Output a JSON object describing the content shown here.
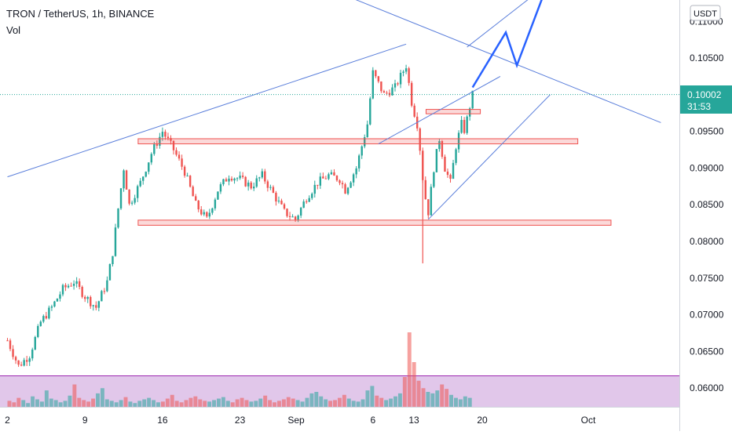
{
  "header": {
    "title": "TRON / TetherUS, 1h, BINANCE",
    "volume_label": "Vol"
  },
  "price_axis": {
    "currency": "USDT",
    "ticks": [
      "0.11000",
      "0.10500",
      "0.10000",
      "0.09500",
      "0.09000",
      "0.08500",
      "0.08000",
      "0.07500",
      "0.07000",
      "0.06500",
      "0.06000"
    ],
    "current_price": "0.10002",
    "countdown": "31:53",
    "current_price_color": "#26a69a"
  },
  "time_axis": {
    "ticks": [
      "2",
      "9",
      "16",
      "23",
      "Sep",
      "6",
      "13",
      "20",
      "Oct"
    ]
  },
  "chart_data": {
    "type": "candlestick",
    "symbol": "TRON / TetherUS",
    "interval": "1h",
    "exchange": "BINANCE",
    "ylim": [
      0.0585,
      0.1155
    ],
    "x_range_days": [
      1,
      38
    ],
    "last_price": 0.10002,
    "price_path": [
      [
        1.0,
        0.0665
      ],
      [
        2.0,
        0.063
      ],
      [
        3.0,
        0.0645
      ],
      [
        4.0,
        0.069
      ],
      [
        5.0,
        0.071
      ],
      [
        6.0,
        0.0735
      ],
      [
        7.0,
        0.0745
      ],
      [
        8.0,
        0.0725
      ],
      [
        9.0,
        0.071
      ],
      [
        10.0,
        0.0745
      ],
      [
        10.5,
        0.0785
      ],
      [
        11.0,
        0.0845
      ],
      [
        11.5,
        0.09
      ],
      [
        12.0,
        0.085
      ],
      [
        13.0,
        0.088
      ],
      [
        14.0,
        0.092
      ],
      [
        15.0,
        0.095
      ],
      [
        16.0,
        0.0925
      ],
      [
        17.0,
        0.0895
      ],
      [
        18.0,
        0.085
      ],
      [
        19.0,
        0.083
      ],
      [
        20.0,
        0.087
      ],
      [
        21.0,
        0.089
      ],
      [
        22.0,
        0.0885
      ],
      [
        23.0,
        0.0875
      ],
      [
        24.0,
        0.089
      ],
      [
        25.0,
        0.0865
      ],
      [
        26.0,
        0.084
      ],
      [
        27.0,
        0.083
      ],
      [
        28.0,
        0.086
      ],
      [
        29.0,
        0.088
      ],
      [
        30.0,
        0.089
      ],
      [
        31.0,
        0.0885
      ],
      [
        31.5,
        0.087
      ],
      [
        32.5,
        0.09
      ],
      [
        33.5,
        0.096
      ],
      [
        34.0,
        0.103
      ],
      [
        35.0,
        0.1
      ],
      [
        36.0,
        0.101
      ],
      [
        36.5,
        0.1025
      ],
      [
        37.0,
        0.104
      ],
      [
        37.5,
        0.099
      ],
      [
        38.0,
        0.096
      ],
      [
        38.3,
        0.092
      ],
      [
        38.6,
        0.087
      ],
      [
        39.0,
        0.084
      ],
      [
        39.5,
        0.09
      ],
      [
        40.0,
        0.094
      ],
      [
        40.5,
        0.09
      ],
      [
        41.0,
        0.088
      ],
      [
        41.5,
        0.093
      ],
      [
        42.0,
        0.096
      ],
      [
        42.3,
        0.095
      ],
      [
        42.6,
        0.0975
      ],
      [
        43.0,
        0.1
      ]
    ],
    "spikes": [
      {
        "day": 38.5,
        "low": 0.077,
        "high": 0.092
      }
    ],
    "volume": {
      "max": 100,
      "values": [
        8,
        6,
        12,
        9,
        5,
        14,
        10,
        7,
        22,
        11,
        9,
        6,
        8,
        15,
        30,
        12,
        9,
        7,
        11,
        18,
        25,
        10,
        8,
        6,
        9,
        13,
        7,
        5,
        8,
        10,
        12,
        9,
        6,
        7,
        11,
        16,
        8,
        6,
        9,
        12,
        14,
        10,
        8,
        7,
        9,
        11,
        13,
        8,
        6,
        10,
        12,
        9,
        7,
        8,
        11,
        15,
        9,
        6,
        8,
        10,
        13,
        11,
        9,
        7,
        12,
        18,
        20,
        14,
        10,
        8,
        9,
        12,
        16,
        11,
        8,
        7,
        10,
        22,
        28,
        15,
        12,
        9,
        11,
        14,
        18,
        40,
        100,
        60,
        35,
        25,
        20,
        18,
        22,
        30,
        24,
        16,
        12,
        10,
        14,
        12
      ]
    },
    "annotations": {
      "zones": [
        {
          "name": "zone-upper-small",
          "x1": 38.8,
          "x2": 43.7,
          "y1": 0.098,
          "y2": 0.0974
        },
        {
          "name": "zone-middle",
          "x1": 12.8,
          "x2": 52.5,
          "y1": 0.094,
          "y2": 0.0933
        },
        {
          "name": "zone-lower",
          "x1": 12.8,
          "x2": 55.5,
          "y1": 0.0829,
          "y2": 0.0822
        }
      ],
      "trendlines": [
        {
          "name": "rising-resistance",
          "from": [
            1,
            0.0888
          ],
          "to": [
            37,
            0.1069
          ]
        },
        {
          "name": "falling-trendline",
          "from": [
            25,
            0.1175
          ],
          "to": [
            60,
            0.0962
          ]
        },
        {
          "name": "channel-upper",
          "from": [
            34.5,
            0.0933
          ],
          "to": [
            45.5,
            0.1025
          ]
        },
        {
          "name": "channel-lower",
          "from": [
            39,
            0.083
          ],
          "to": [
            50,
            0.1
          ]
        },
        {
          "name": "projection-channel-top",
          "from": [
            42.5,
            0.1065
          ],
          "to": [
            51,
            0.1165
          ]
        }
      ],
      "projection": [
        [
          43,
          0.101
        ],
        [
          46,
          0.1085
        ],
        [
          47,
          0.104
        ],
        [
          50,
          0.116
        ]
      ],
      "projection_color": "#2962ff",
      "line_color": "#5b7fdb",
      "zone_color": "#ef5350"
    },
    "colors": {
      "up": "#26a69a",
      "down": "#ef5350",
      "volume_panel": "#e1c7ea"
    }
  }
}
